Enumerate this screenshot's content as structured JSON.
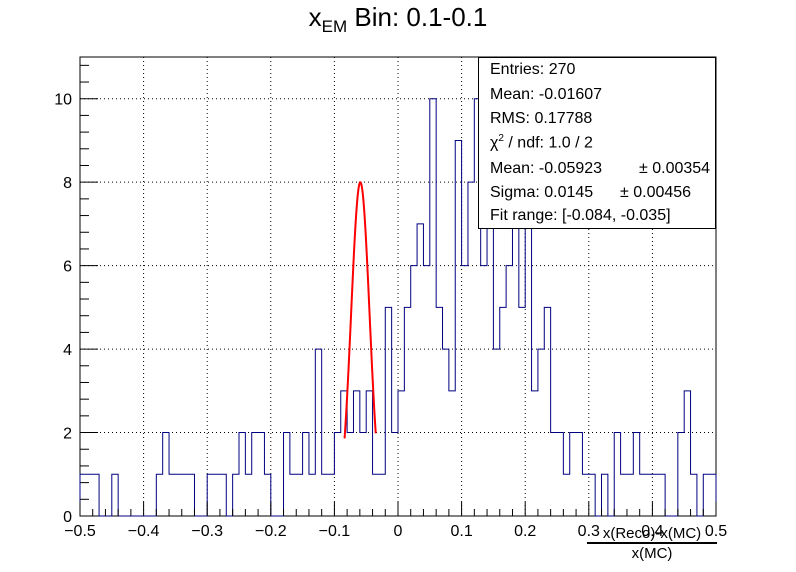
{
  "title": {
    "main": "x",
    "sub": "EM",
    "rest": " Bin: 0.1-0.1"
  },
  "stats": {
    "entries": "Entries: 270",
    "mean": "Mean: -0.01607",
    "rms": "RMS: 0.17788",
    "chi2_symbol": "χ",
    "chi2_exp": "2",
    "chi2_rest": " / ndf: 1.0 / 2",
    "fit_mean": "Mean: -0.05923",
    "fit_mean_err": "± 0.00354",
    "fit_sigma": "Sigma: 0.0145",
    "fit_sigma_err": "± 0.00456",
    "fit_range": "Fit range: [-0.084, -0.035]"
  },
  "xaxis_title": {
    "numerator": "x(Reco)-x(MC)",
    "denominator": "x(MC)"
  },
  "chart_data": {
    "type": "histogram",
    "xlim": [
      -0.5,
      0.5
    ],
    "ylim": [
      0,
      11
    ],
    "bins": 100,
    "xticks": [
      -0.5,
      -0.4,
      -0.3,
      -0.2,
      -0.1,
      0,
      0.1,
      0.2,
      0.3,
      0.4,
      0.5
    ],
    "xtick_labels": [
      "−0.5",
      "−0.4",
      "−0.3",
      "−0.2",
      "−0.1",
      "0",
      "0.1",
      "0.2",
      "0.3",
      "0.4",
      "0.5"
    ],
    "yticks": [
      0,
      2,
      4,
      6,
      8,
      10
    ],
    "ytick_labels": [
      "0",
      "2",
      "4",
      "6",
      "8",
      "10"
    ],
    "grid": true,
    "histogram_color": "#000080",
    "fit_color": "#ff0000",
    "counts": [
      1,
      1,
      1,
      0,
      0,
      1,
      0,
      0,
      0,
      0,
      0,
      0,
      1,
      2,
      1,
      1,
      1,
      1,
      0,
      0,
      1,
      1,
      1,
      0,
      1,
      2,
      1,
      2,
      2,
      1,
      0,
      0,
      2,
      1,
      1,
      2,
      1,
      4,
      1,
      1,
      2,
      3,
      2,
      3,
      2,
      3,
      1,
      1,
      5,
      2,
      3,
      5,
      6,
      7,
      6,
      10,
      5,
      4,
      3,
      9,
      6,
      8,
      10,
      6,
      8,
      4,
      5,
      6,
      10,
      5,
      7,
      3,
      4,
      5,
      2,
      2,
      1,
      2,
      2,
      1,
      1,
      0,
      1,
      0,
      2,
      1,
      1,
      2,
      1,
      1,
      1,
      1,
      0,
      0,
      2,
      3,
      1,
      0,
      1,
      1
    ],
    "fit": {
      "function": "gaus",
      "mean": -0.05923,
      "sigma": 0.0145,
      "peak": 8.0,
      "range": [
        -0.084,
        -0.035
      ]
    }
  }
}
